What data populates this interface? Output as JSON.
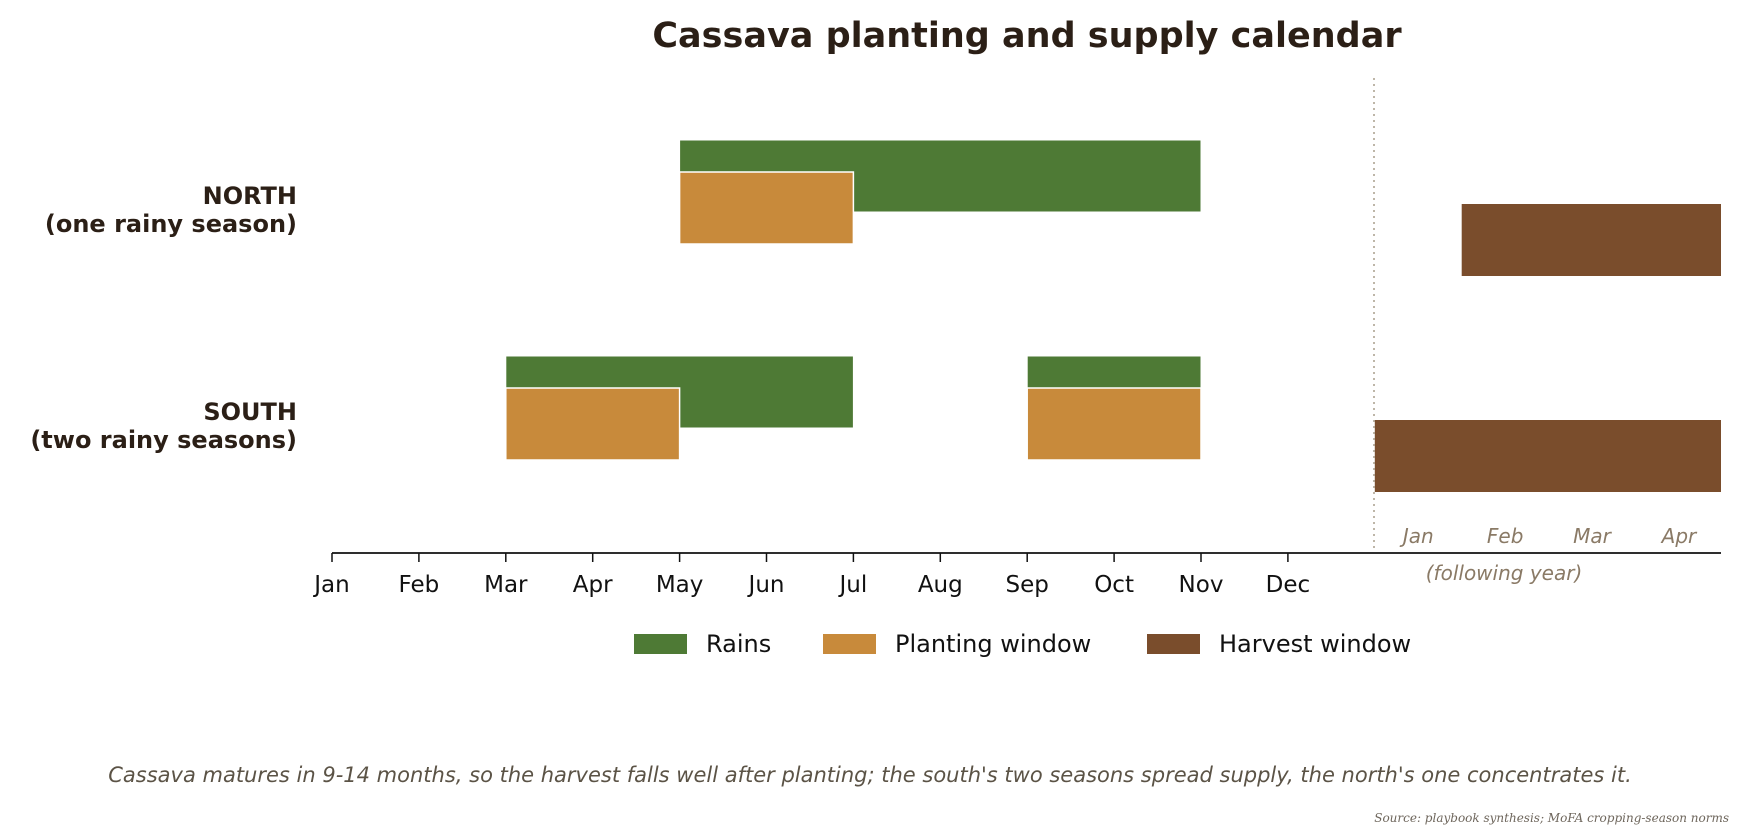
{
  "chart_data": {
    "type": "gantt",
    "title": "Cassava planting and supply calendar",
    "x_months": [
      "Jan",
      "Feb",
      "Mar",
      "Apr",
      "May",
      "Jun",
      "Jul",
      "Aug",
      "Sep",
      "Oct",
      "Nov",
      "Dec"
    ],
    "x_months_following": [
      "Jan",
      "Feb",
      "Mar",
      "Apr"
    ],
    "following_year_label": "(following year)",
    "xlim_months": [
      0,
      16
    ],
    "rows": [
      {
        "label_lines": [
          "NORTH",
          "(one rainy season)"
        ],
        "rains": [
          [
            4,
            10
          ]
        ],
        "planting": [
          [
            4,
            6
          ]
        ],
        "harvest": [
          [
            13,
            16
          ]
        ]
      },
      {
        "label_lines": [
          "SOUTH",
          "(two rainy seasons)"
        ],
        "rains": [
          [
            2,
            6
          ],
          [
            8,
            10
          ]
        ],
        "planting": [
          [
            2,
            4
          ],
          [
            8,
            10
          ]
        ],
        "harvest": [
          [
            12,
            16
          ]
        ]
      }
    ],
    "legend": [
      {
        "key": "rains",
        "label": "Rains",
        "color": "#4e7a35"
      },
      {
        "key": "planting",
        "label": "Planting window",
        "color": "#c88a3b"
      },
      {
        "key": "harvest",
        "label": "Harvest window",
        "color": "#7a4d2c"
      }
    ],
    "legend_position": "bottom-center",
    "year_divider_color": "#a89e8c"
  },
  "caption": "Cassava matures in 9-14 months, so the harvest falls well after planting; the south's two seasons spread supply, the north's one concentrates it.",
  "source": "Source: playbook synthesis; MoFA cropping-season norms"
}
